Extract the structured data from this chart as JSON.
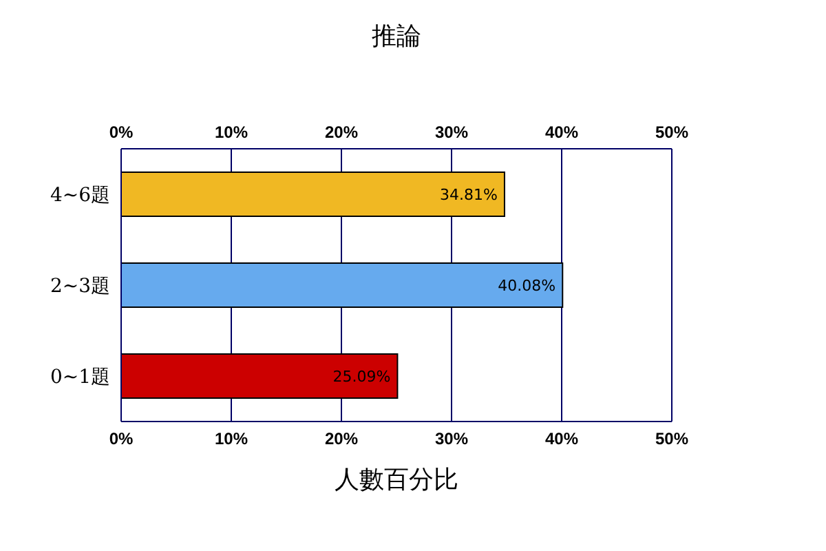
{
  "chart_data": {
    "type": "bar",
    "orientation": "horizontal",
    "title": "推論",
    "xlabel": "人數百分比",
    "categories": [
      "4~6題",
      "2~3題",
      "0~1題"
    ],
    "values": [
      34.81,
      40.08,
      25.09
    ],
    "colors": [
      "#f0b823",
      "#66aaee",
      "#cc0000"
    ],
    "value_labels": [
      "34.81%",
      "40.08%",
      "25.09%"
    ],
    "xlim": [
      0,
      50
    ],
    "xticks": [
      {
        "value": 0,
        "label": "0%"
      },
      {
        "value": 10,
        "label": "10%"
      },
      {
        "value": 20,
        "label": "20%"
      },
      {
        "value": 30,
        "label": "30%"
      },
      {
        "value": 40,
        "label": "40%"
      },
      {
        "value": 50,
        "label": "50%"
      }
    ],
    "x2lim": [
      0,
      50
    ],
    "x2ticks": [
      {
        "value": 0,
        "label": "0%"
      },
      {
        "value": 10,
        "label": "10%"
      },
      {
        "value": 20,
        "label": "20%"
      },
      {
        "value": 30,
        "label": "30%"
      },
      {
        "value": 40,
        "label": "40%"
      },
      {
        "value": 50,
        "label": "50%"
      }
    ],
    "grid": "x"
  }
}
